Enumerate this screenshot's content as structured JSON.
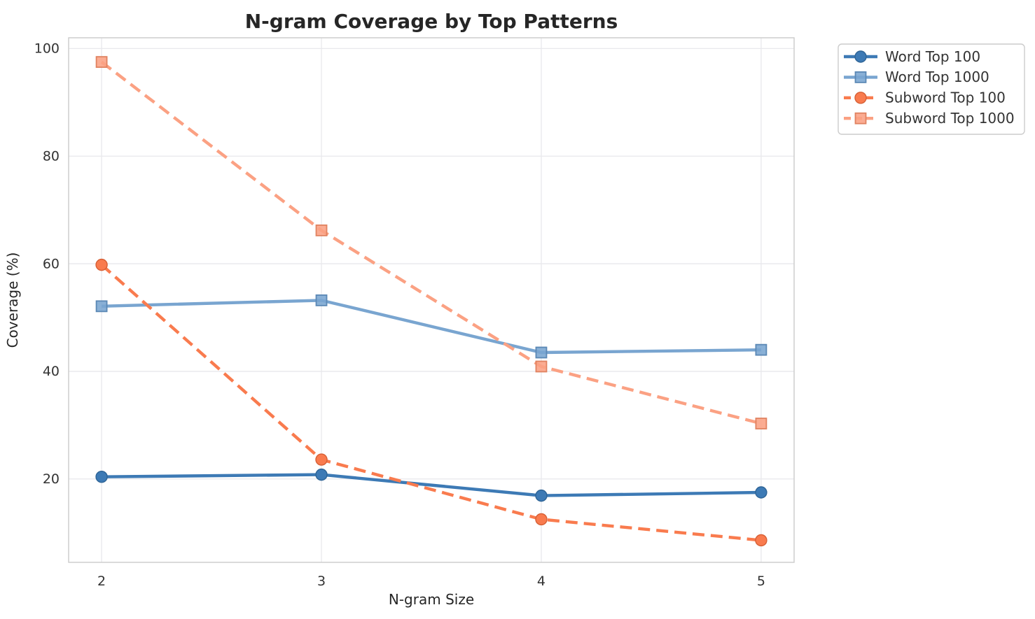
{
  "chart_data": {
    "type": "line",
    "title": "N-gram Coverage by Top Patterns",
    "xlabel": "N-gram Size",
    "ylabel": "Coverage (%)",
    "categories": [
      2,
      3,
      4,
      5
    ],
    "xtick_labels": [
      "2",
      "3",
      "4",
      "5"
    ],
    "ytick_values": [
      20,
      40,
      60,
      80,
      100
    ],
    "ytick_labels": [
      "20",
      "40",
      "60",
      "80",
      "100"
    ],
    "xlim": [
      1.85,
      5.15
    ],
    "ylim": [
      4.5,
      102
    ],
    "grid": true,
    "legend_position": "outside-upper-right",
    "series": [
      {
        "name": "Word Top 100",
        "values": [
          20.4,
          20.8,
          16.9,
          17.5
        ],
        "color": "#3d7ab5",
        "edge_color": "#2e6496",
        "linestyle": "solid",
        "marker": "circle"
      },
      {
        "name": "Word Top 1000",
        "values": [
          52.1,
          53.2,
          43.5,
          44.0
        ],
        "color": "#79a5d0",
        "edge_color": "#5b88b5",
        "linestyle": "solid",
        "marker": "square"
      },
      {
        "name": "Subword Top 100",
        "values": [
          59.8,
          23.6,
          12.5,
          8.6
        ],
        "color": "#f97b4e",
        "edge_color": "#d65f35",
        "linestyle": "dashed",
        "marker": "circle"
      },
      {
        "name": "Subword Top 1000",
        "values": [
          97.5,
          66.2,
          40.9,
          30.3
        ],
        "color": "#fba183",
        "edge_color": "#e08260",
        "linestyle": "dashed",
        "marker": "square"
      }
    ],
    "colors": {
      "grid": "#e8e8ec",
      "spine": "#cbcbcb",
      "title_text": "#262626",
      "tick_text": "#333333",
      "label_text": "#262626",
      "legend_border": "#cccccc",
      "legend_bg": "#ffffff",
      "background": "#ffffff"
    }
  }
}
